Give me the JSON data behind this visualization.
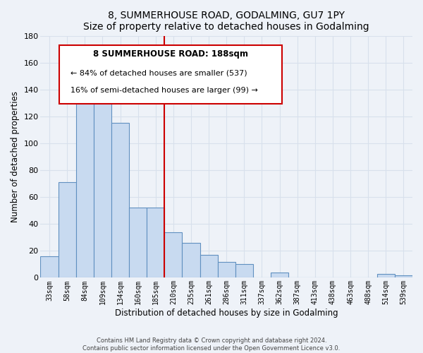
{
  "title": "8, SUMMERHOUSE ROAD, GODALMING, GU7 1PY",
  "subtitle": "Size of property relative to detached houses in Godalming",
  "xlabel": "Distribution of detached houses by size in Godalming",
  "ylabel": "Number of detached properties",
  "bar_labels": [
    "33sqm",
    "58sqm",
    "84sqm",
    "109sqm",
    "134sqm",
    "160sqm",
    "185sqm",
    "210sqm",
    "235sqm",
    "261sqm",
    "286sqm",
    "311sqm",
    "337sqm",
    "362sqm",
    "387sqm",
    "413sqm",
    "438sqm",
    "463sqm",
    "488sqm",
    "514sqm",
    "539sqm"
  ],
  "bar_values": [
    16,
    71,
    131,
    147,
    115,
    52,
    52,
    34,
    26,
    17,
    12,
    10,
    0,
    4,
    0,
    0,
    0,
    0,
    0,
    3,
    2
  ],
  "bar_color": "#c8daf0",
  "bar_edge_color": "#6090c0",
  "ylim": [
    0,
    180
  ],
  "yticks": [
    0,
    20,
    40,
    60,
    80,
    100,
    120,
    140,
    160,
    180
  ],
  "annotation_title": "8 SUMMERHOUSE ROAD: 188sqm",
  "annotation_line1": "← 84% of detached houses are smaller (537)",
  "annotation_line2": "16% of semi-detached houses are larger (99) →",
  "annotation_box_color": "#ffffff",
  "annotation_box_edge": "#cc0000",
  "vline_x_index": 7,
  "footer_line1": "Contains HM Land Registry data © Crown copyright and database right 2024.",
  "footer_line2": "Contains public sector information licensed under the Open Government Licence v3.0.",
  "bg_color": "#eef2f8",
  "grid_color": "#d8e0ec"
}
